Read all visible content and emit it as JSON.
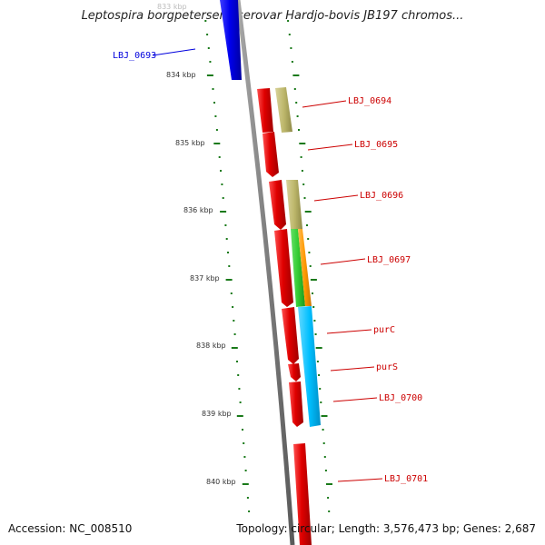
{
  "title": "Leptospira borgpetersenii serovar Hardjo-bovis JB197 chromos...",
  "accession_text": "Accession: NC_008510",
  "summary_text": "Topology: circular; Length: 3,576,473 bp; Genes: 2,687",
  "kbp_labels": [
    "833 kbp",
    "834 kbp",
    "835 kbp",
    "836 kbp",
    "837 kbp",
    "838 kbp",
    "839 kbp",
    "840 kbp"
  ],
  "genes": [
    {
      "label": "LBJ_0693",
      "color": "#0000dd"
    },
    {
      "label": "LBJ_0694",
      "color": "#cc0000"
    },
    {
      "label": "LBJ_0695",
      "color": "#cc0000"
    },
    {
      "label": "LBJ_0696",
      "color": "#cc0000"
    },
    {
      "label": "LBJ_0697",
      "color": "#cc0000"
    },
    {
      "label": "purC",
      "color": "#cc0000"
    },
    {
      "label": "purS",
      "color": "#cc0000"
    },
    {
      "label": "LBJ_0700",
      "color": "#cc0000"
    },
    {
      "label": "LBJ_0701",
      "color": "#cc0000"
    }
  ],
  "colors": {
    "backbone": "#808080",
    "tick": "#1a7a1a",
    "cds_red": "#e00000",
    "cds_blue": "#0000ee",
    "khaki": "#bdb76b",
    "green": "#33cc33",
    "orange": "#ff9900",
    "cyan": "#00bfff"
  }
}
